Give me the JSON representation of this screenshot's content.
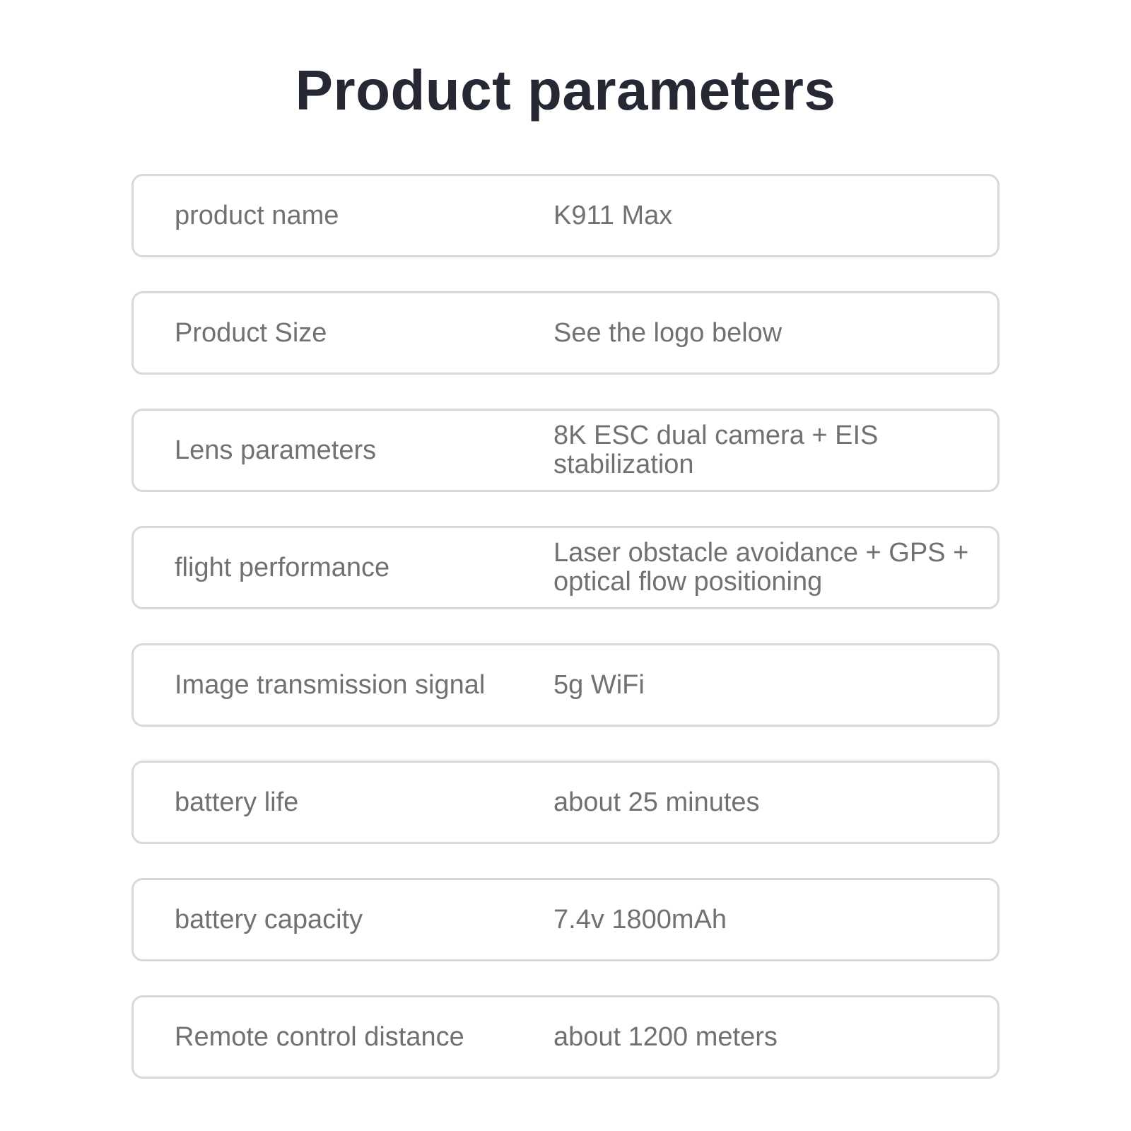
{
  "title": "Product parameters",
  "rows": [
    {
      "label": "product name",
      "value": "K911 Max"
    },
    {
      "label": "Product Size",
      "value": "See the logo below"
    },
    {
      "label": "Lens parameters",
      "value": "8K ESC dual camera + EIS stabilization"
    },
    {
      "label": "flight performance",
      "value": "Laser obstacle avoidance + GPS + optical flow positioning"
    },
    {
      "label": "Image transmission signal",
      "value": "5g WiFi"
    },
    {
      "label": "battery life",
      "value": "about 25 minutes"
    },
    {
      "label": "battery capacity",
      "value": "7.4v 1800mAh"
    },
    {
      "label": "Remote control distance",
      "value": "about 1200 meters"
    }
  ]
}
